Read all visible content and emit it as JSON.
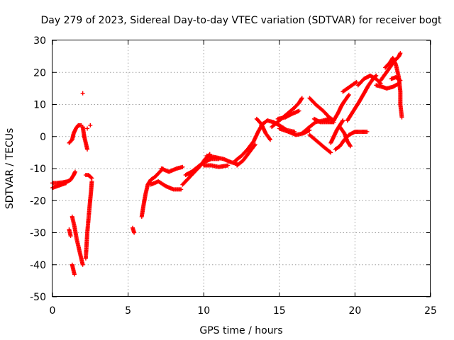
{
  "chart_data": {
    "type": "scatter",
    "title": "Day 279 of 2023, Sidereal Day-to-day VTEC variation (SDTVAR) for receiver bogt",
    "xlabel": "GPS time / hours",
    "ylabel": "SDTVAR / TECUs",
    "xlim": [
      0,
      25
    ],
    "ylim": [
      -50,
      30
    ],
    "x_ticks": [
      "0",
      "5",
      "10",
      "15",
      "20",
      "25"
    ],
    "y_ticks": [
      "-50",
      "-40",
      "-30",
      "-20",
      "-10",
      "0",
      "10",
      "20",
      "30"
    ],
    "grid": true,
    "marker": "plus",
    "color": "#ff0000",
    "series": [
      {
        "segments": [
          [
            [
              0.0,
              -14.5
            ],
            [
              0.3,
              -14.5
            ],
            [
              0.7,
              -14.3
            ],
            [
              1.0,
              -14.0
            ],
            [
              1.2,
              -13.5
            ],
            [
              1.4,
              -12.0
            ],
            [
              1.5,
              -11.0
            ]
          ],
          [
            [
              0.0,
              -16.0
            ],
            [
              0.3,
              -15.5
            ],
            [
              0.6,
              -15.0
            ],
            [
              0.9,
              -14.5
            ]
          ],
          [
            [
              1.1,
              -29.0
            ],
            [
              1.2,
              -31.0
            ]
          ],
          [
            [
              1.3,
              -25.0
            ],
            [
              1.45,
              -28.0
            ],
            [
              1.6,
              -32.0
            ],
            [
              1.75,
              -35.0
            ],
            [
              1.9,
              -38.0
            ],
            [
              2.0,
              -40.0
            ]
          ],
          [
            [
              1.3,
              -40.0
            ],
            [
              1.4,
              -42.0
            ],
            [
              1.45,
              -43.0
            ]
          ],
          [
            [
              1.1,
              -2.0
            ],
            [
              1.3,
              -1.0
            ],
            [
              1.4,
              1.0
            ],
            [
              1.55,
              2.5
            ],
            [
              1.7,
              3.5
            ],
            [
              1.9,
              3.5
            ]
          ],
          [
            [
              2.0,
              3.0
            ],
            [
              2.1,
              0.0
            ],
            [
              2.2,
              -2.0
            ],
            [
              2.3,
              -4.0
            ]
          ],
          [
            [
              2.2,
              -38.0
            ],
            [
              2.3,
              -30.0
            ],
            [
              2.45,
              -22.0
            ],
            [
              2.55,
              -17.0
            ],
            [
              2.6,
              -14.0
            ]
          ],
          [
            [
              2.2,
              -12.0
            ],
            [
              2.35,
              -12.0
            ],
            [
              2.5,
              -12.5
            ],
            [
              2.6,
              -13.0
            ]
          ],
          [
            [
              5.3,
              -28.5
            ],
            [
              5.4,
              -30.0
            ]
          ],
          [
            [
              5.9,
              -25.0
            ],
            [
              6.0,
              -22.0
            ],
            [
              6.15,
              -18.0
            ],
            [
              6.3,
              -15.0
            ],
            [
              6.5,
              -13.5
            ],
            [
              6.8,
              -12.5
            ],
            [
              7.0,
              -11.5
            ],
            [
              7.3,
              -10.0
            ]
          ],
          [
            [
              6.5,
              -15.0
            ],
            [
              7.0,
              -14.0
            ],
            [
              7.5,
              -15.5
            ],
            [
              8.0,
              -16.5
            ],
            [
              8.5,
              -16.5
            ]
          ],
          [
            [
              7.2,
              -10.0
            ],
            [
              7.7,
              -11.0
            ],
            [
              8.2,
              -10.0
            ],
            [
              8.6,
              -9.5
            ]
          ],
          [
            [
              8.6,
              -15.0
            ],
            [
              9.0,
              -13.0
            ],
            [
              9.4,
              -11.0
            ],
            [
              9.8,
              -9.0
            ],
            [
              10.1,
              -7.0
            ],
            [
              10.4,
              -5.5
            ]
          ],
          [
            [
              8.8,
              -12.0
            ],
            [
              9.2,
              -11.0
            ],
            [
              9.6,
              -9.5
            ],
            [
              10.0,
              -8.0
            ],
            [
              10.5,
              -7.0
            ],
            [
              11.0,
              -7.0
            ]
          ],
          [
            [
              10.2,
              -6.0
            ],
            [
              10.8,
              -6.5
            ],
            [
              11.3,
              -7.0
            ],
            [
              11.8,
              -8.0
            ],
            [
              12.2,
              -8.5
            ]
          ],
          [
            [
              10.0,
              -9.0
            ],
            [
              10.5,
              -9.0
            ],
            [
              11.0,
              -9.5
            ],
            [
              11.6,
              -9.0
            ]
          ],
          [
            [
              12.1,
              -7.5
            ],
            [
              12.5,
              -6.0
            ],
            [
              12.9,
              -4.0
            ],
            [
              13.3,
              -1.5
            ],
            [
              13.6,
              1.5
            ],
            [
              13.9,
              4.0
            ]
          ],
          [
            [
              12.2,
              -9.0
            ],
            [
              12.6,
              -7.5
            ],
            [
              13.0,
              -5.0
            ],
            [
              13.4,
              -2.5
            ]
          ],
          [
            [
              13.5,
              5.5
            ],
            [
              13.8,
              4.0
            ],
            [
              14.1,
              1.0
            ],
            [
              14.4,
              -1.0
            ]
          ],
          [
            [
              13.8,
              3.5
            ],
            [
              14.2,
              5.0
            ],
            [
              14.6,
              4.5
            ],
            [
              15.0,
              3.5
            ],
            [
              15.5,
              2.0
            ],
            [
              16.0,
              1.5
            ]
          ],
          [
            [
              14.5,
              3.0
            ],
            [
              15.0,
              5.0
            ],
            [
              15.5,
              7.0
            ],
            [
              16.0,
              9.0
            ],
            [
              16.3,
              10.5
            ],
            [
              16.5,
              12.0
            ]
          ],
          [
            [
              14.9,
              5.5
            ],
            [
              15.4,
              6.0
            ],
            [
              15.8,
              7.0
            ],
            [
              16.3,
              8.0
            ]
          ],
          [
            [
              15.0,
              2.5
            ],
            [
              15.6,
              1.5
            ],
            [
              16.1,
              0.5
            ],
            [
              16.6,
              1.0
            ],
            [
              17.0,
              2.0
            ]
          ],
          [
            [
              16.5,
              1.0
            ],
            [
              17.0,
              3.0
            ],
            [
              17.4,
              4.5
            ],
            [
              17.9,
              5.0
            ],
            [
              18.3,
              5.5
            ]
          ],
          [
            [
              17.0,
              12.0
            ],
            [
              17.4,
              10.0
            ],
            [
              17.9,
              8.0
            ],
            [
              18.3,
              6.0
            ],
            [
              18.6,
              5.0
            ]
          ],
          [
            [
              17.0,
              0.5
            ],
            [
              17.5,
              -1.5
            ],
            [
              18.0,
              -3.5
            ],
            [
              18.4,
              -5.0
            ]
          ],
          [
            [
              17.3,
              5.5
            ],
            [
              17.7,
              4.5
            ],
            [
              18.2,
              4.5
            ],
            [
              18.6,
              4.5
            ]
          ],
          [
            [
              18.4,
              -2.0
            ],
            [
              18.6,
              0.0
            ],
            [
              18.8,
              2.0
            ],
            [
              19.0,
              3.5
            ],
            [
              19.2,
              5.0
            ]
          ],
          [
            [
              18.6,
              5.0
            ],
            [
              18.9,
              7.5
            ],
            [
              19.1,
              9.5
            ],
            [
              19.3,
              11.0
            ],
            [
              19.6,
              13.0
            ]
          ],
          [
            [
              18.7,
              -4.0
            ],
            [
              19.0,
              -3.0
            ],
            [
              19.3,
              -1.0
            ],
            [
              19.6,
              0.5
            ],
            [
              20.0,
              1.5
            ],
            [
              20.4,
              1.5
            ],
            [
              20.8,
              1.5
            ]
          ],
          [
            [
              19.2,
              14.0
            ],
            [
              19.5,
              15.0
            ],
            [
              19.8,
              16.0
            ],
            [
              20.1,
              17.0
            ]
          ],
          [
            [
              19.5,
              5.0
            ],
            [
              19.9,
              8.0
            ],
            [
              20.3,
              11.0
            ],
            [
              20.6,
              13.5
            ],
            [
              20.9,
              16.0
            ],
            [
              21.2,
              18.0
            ],
            [
              21.4,
              19.0
            ]
          ],
          [
            [
              20.2,
              16.0
            ],
            [
              20.6,
              18.0
            ],
            [
              21.0,
              19.0
            ],
            [
              21.4,
              18.0
            ],
            [
              21.7,
              16.5
            ]
          ],
          [
            [
              19.0,
              3.0
            ],
            [
              19.3,
              1.0
            ],
            [
              19.5,
              -1.5
            ],
            [
              19.7,
              -3.0
            ]
          ],
          [
            [
              21.4,
              16.0
            ],
            [
              21.8,
              15.5
            ],
            [
              22.1,
              15.0
            ],
            [
              22.5,
              15.5
            ],
            [
              22.9,
              16.5
            ]
          ],
          [
            [
              21.7,
              17.5
            ],
            [
              22.0,
              19.5
            ],
            [
              22.3,
              21.5
            ],
            [
              22.6,
              23.5
            ],
            [
              22.9,
              25.0
            ],
            [
              23.0,
              26.0
            ]
          ],
          [
            [
              22.0,
              21.5
            ],
            [
              22.3,
              23.0
            ],
            [
              22.5,
              24.5
            ],
            [
              22.7,
              22.5
            ],
            [
              22.9,
              18.5
            ],
            [
              23.0,
              14.0
            ],
            [
              23.0,
              10.0
            ],
            [
              23.1,
              6.0
            ]
          ],
          [
            [
              22.4,
              18.0
            ],
            [
              22.7,
              18.5
            ],
            [
              23.0,
              17.5
            ]
          ]
        ],
        "points": [
          [
            2.0,
            13.5
          ],
          [
            2.3,
            2.5
          ],
          [
            2.5,
            3.5
          ]
        ]
      }
    ]
  }
}
